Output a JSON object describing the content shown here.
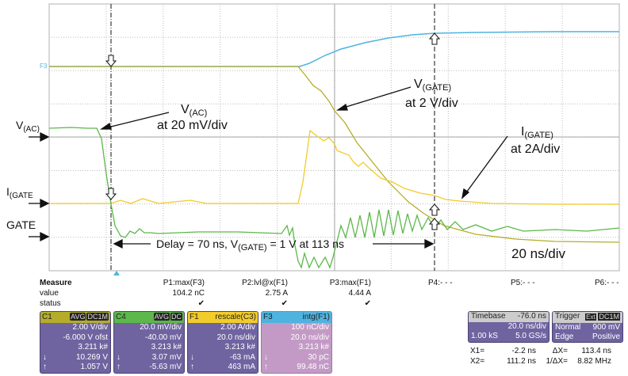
{
  "traces": {
    "f3_marker": "F3",
    "colors": {
      "c1": "#b5ad2a",
      "c4": "#5cb84a",
      "f1": "#f2cc2a",
      "f3": "#4fb3e0",
      "grid": "#bbbbbb"
    }
  },
  "annotations": {
    "vac_main": "V",
    "vac_sub": "(AC)",
    "vac_scale": "at 20 mV/div",
    "vgate_main": "V",
    "vgate_sub": "(GATE)",
    "vgate_scale": "at 2 V/div",
    "igate_main": "I",
    "igate_sub": "(GATE)",
    "igate_scale": "at 2A/div",
    "delay_pre": "Delay = 70 ns,  V",
    "delay_sub": "(GATE)",
    "delay_post": " = 1 V at  113 ns",
    "timescale": "20 ns/div"
  },
  "left_labels": {
    "vac_main": "V",
    "vac_sub": "(AC)",
    "igate_main": "I",
    "igate_sub": "(GATE",
    "gate": "GATE"
  },
  "measure": {
    "title": "Measure",
    "row_value": "value",
    "row_status": "status",
    "params": [
      {
        "name": "P1:max(F3)",
        "value": "104.2 nC",
        "status": "✔"
      },
      {
        "name": "P2:lvl@x(F1)",
        "value": "2.75 A",
        "status": "✔"
      },
      {
        "name": "P3:max(F1)",
        "value": "4.44 A",
        "status": "✔"
      },
      {
        "name": "P4:- - -"
      },
      {
        "name": "P5:- - -"
      },
      {
        "name": "P6:- - -"
      }
    ]
  },
  "channels": [
    {
      "id": "C1",
      "tags": [
        "AVG",
        "DC1M"
      ],
      "color": "#b5ad2a",
      "lines": [
        "2.00 V/div",
        "-6.000 V ofst",
        "3.211 k#"
      ],
      "min": "10.269 V",
      "max": "1.057 V"
    },
    {
      "id": "C4",
      "tags": [
        "AVG",
        "DC"
      ],
      "color": "#5cb84a",
      "lines": [
        "20.0 mV/div",
        "-40.00 mV",
        "3.213 k#"
      ],
      "min": "3.07 mV",
      "max": "-5.63 mV"
    },
    {
      "id": "F1",
      "func": "rescale(C3)",
      "color": "#f2cc2a",
      "lines": [
        "2.00 A/div",
        "20.0 ns/div",
        "3.213 k#"
      ],
      "min": "-63 mA",
      "max": "463 mA"
    },
    {
      "id": "F3",
      "func": "intg(F1)",
      "color": "#4fb3e0",
      "lines": [
        "100 nC/div",
        "20.0 ns/div",
        "3.213 k#"
      ],
      "min": "30 pC",
      "max": "99.48 nC"
    }
  ],
  "timebase": {
    "label": "Timebase",
    "delay": "-76.0 ns",
    "scale": "20.0 ns/div",
    "samples": "1.00 kS",
    "rate": "5.0 GS/s"
  },
  "trigger": {
    "label": "Trigger",
    "tags": [
      "Ext",
      "DC1M"
    ],
    "mode": "Normal",
    "level": "900 mV",
    "type": "Edge",
    "slope": "Positive"
  },
  "cursors": {
    "x1_label": "X1=",
    "x1": "-2.2 ns",
    "dx_label": "ΔX=",
    "dx": "113.4 ns",
    "x2_label": "X2=",
    "x2": "111.2 ns",
    "inv_label": "1/ΔX=",
    "inv": "8.82 MHz"
  }
}
